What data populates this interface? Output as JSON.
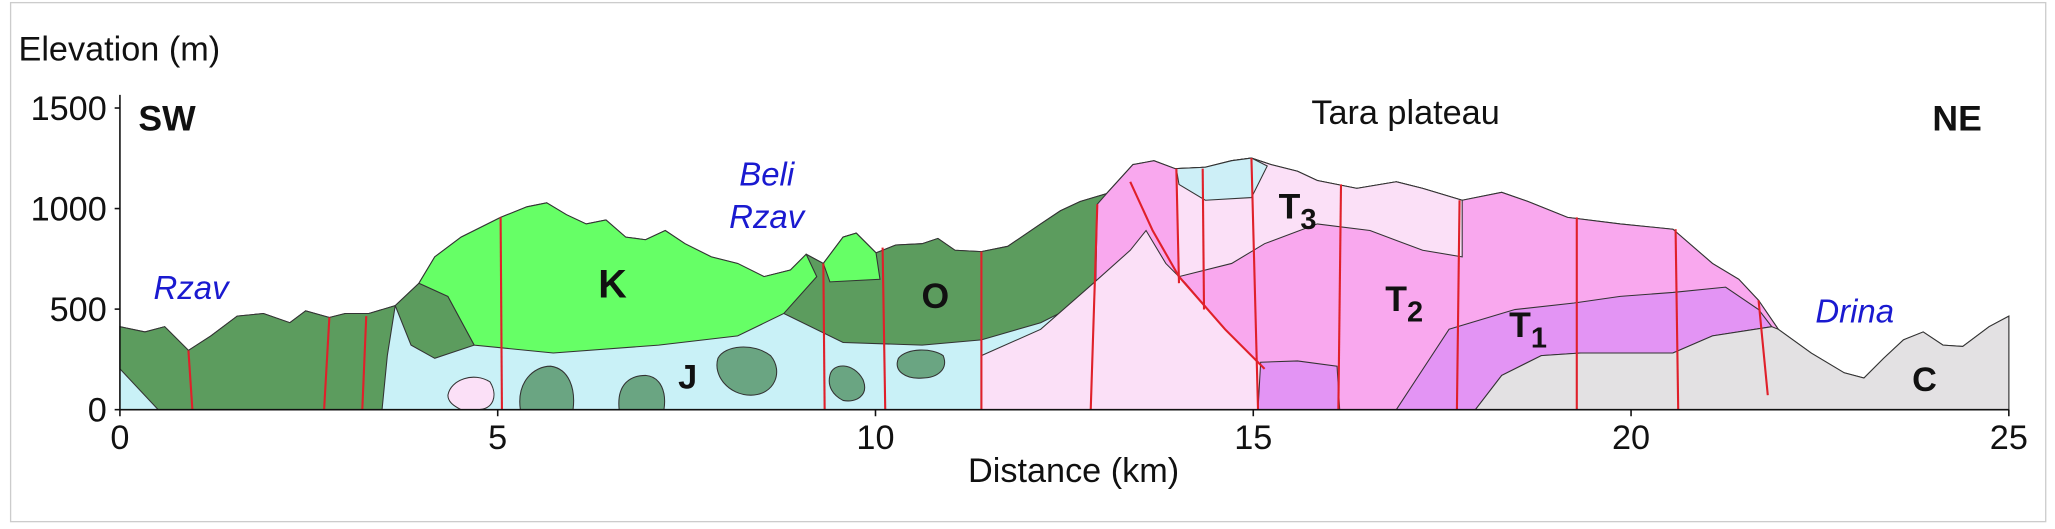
{
  "chart_data": {
    "type": "cross-section",
    "y_label": "Elevation (m)",
    "x_label": "Distance (km)",
    "xlim": [
      0,
      25
    ],
    "ylim": [
      0,
      1500
    ],
    "xticks": [
      0,
      5,
      10,
      15,
      20,
      25
    ],
    "yticks": [
      0,
      500,
      1000,
      1500
    ],
    "annotations": {
      "sw": "SW",
      "ne": "NE",
      "tara": "Tara plateau",
      "rzav": "Rzav",
      "beli_rzav": [
        "Beli",
        "Rzav"
      ],
      "drina": "Drina",
      "units": {
        "k": "K",
        "j": "J",
        "o": "O",
        "t3": {
          "base": "T",
          "sub": "3"
        },
        "t2": {
          "base": "T",
          "sub": "2"
        },
        "t1": {
          "base": "T",
          "sub": "1"
        },
        "c": "C"
      }
    }
  }
}
